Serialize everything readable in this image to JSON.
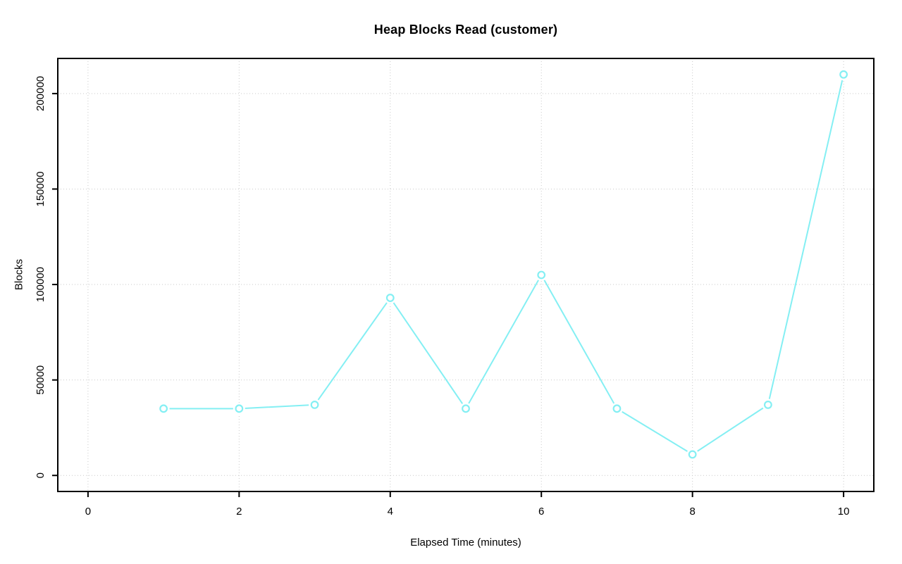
{
  "page": {
    "background": "#FFFFFF"
  },
  "chart_data": {
    "type": "line",
    "title": "Heap Blocks Read (customer)",
    "xlabel": "Elapsed Time (minutes)",
    "ylabel": "Blocks",
    "x": [
      1,
      2,
      3,
      4,
      5,
      6,
      7,
      8,
      9,
      10
    ],
    "y": [
      35000,
      35000,
      37000,
      93000,
      35000,
      105000,
      35000,
      11000,
      37000,
      210000
    ],
    "x_ticks": [
      0,
      2,
      4,
      6,
      8,
      10
    ],
    "y_ticks": [
      0,
      50000,
      100000,
      150000,
      200000
    ],
    "xlim": [
      -0.4,
      10.4
    ],
    "ylim": [
      -8400,
      218400
    ],
    "grid": true,
    "grid_style": "dotted",
    "legend": "none",
    "marker": "open-circle",
    "line_color": "#84EFF3",
    "grid_color": "#C9C9C9",
    "axis_color": "#000000",
    "text_color": "#000000"
  }
}
